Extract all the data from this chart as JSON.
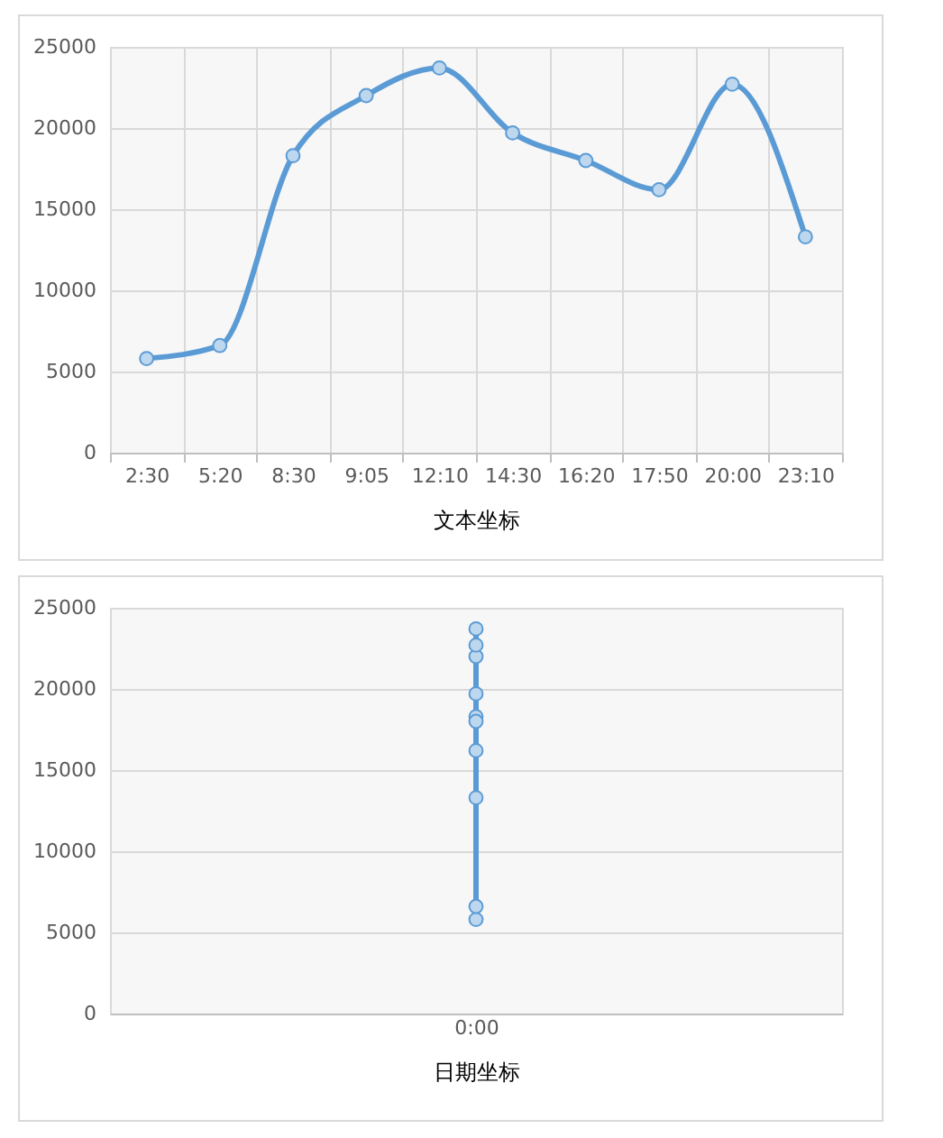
{
  "chart_data": [
    {
      "type": "line",
      "xlabel": "文本坐标",
      "categories": [
        "2:30",
        "5:20",
        "8:30",
        "9:05",
        "12:10",
        "14:30",
        "16:20",
        "17:50",
        "20:00",
        "23:10"
      ],
      "series": [
        {
          "color": "#5b9bd5",
          "values": [
            5800,
            6600,
            18300,
            22000,
            23700,
            19700,
            18000,
            16200,
            22700,
            13300
          ]
        }
      ],
      "ylim": [
        0,
        25000
      ],
      "yticks": [
        0,
        5000,
        10000,
        15000,
        20000,
        25000
      ],
      "grid": true,
      "marker": "circle"
    },
    {
      "type": "line",
      "xlabel": "日期坐标",
      "categories": [
        "0:00"
      ],
      "series": [
        {
          "color": "#5b9bd5",
          "x": [
            "0:00",
            "0:00",
            "0:00",
            "0:00",
            "0:00",
            "0:00",
            "0:00",
            "0:00",
            "0:00",
            "0:00"
          ],
          "values": [
            5800,
            6600,
            18300,
            22000,
            23700,
            19700,
            18000,
            16200,
            22700,
            13300
          ]
        }
      ],
      "ylim": [
        0,
        25000
      ],
      "yticks": [
        0,
        5000,
        10000,
        15000,
        20000,
        25000
      ],
      "grid": "y",
      "marker": "circle"
    }
  ]
}
